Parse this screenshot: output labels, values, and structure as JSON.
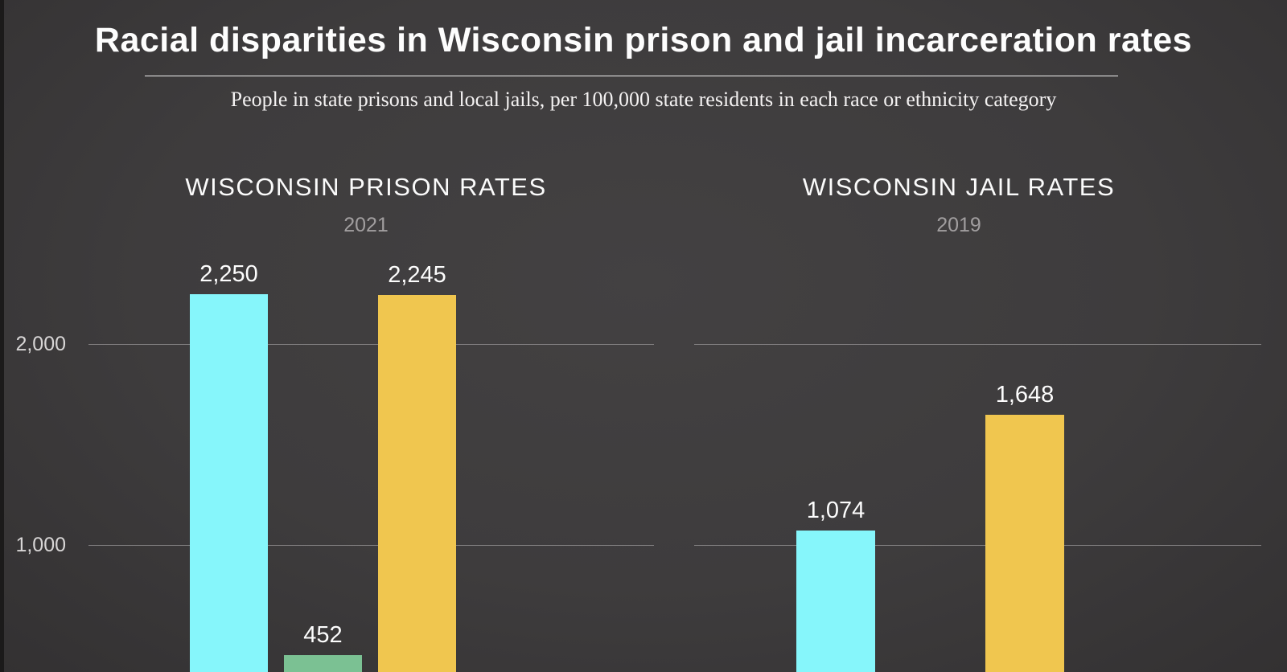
{
  "header": {
    "title": "Racial disparities in Wisconsin prison and jail incarceration rates",
    "subtitle": "People in state prisons and local jails, per 100,000 state residents in each race or ethnicity category"
  },
  "axis": {
    "ticks": [
      {
        "value": 2000,
        "label": "2,000"
      },
      {
        "value": 1000,
        "label": "1,000"
      }
    ]
  },
  "colors": {
    "background": "#3e3c3d",
    "cyan_bar": "#86f6fb",
    "green_bar": "#7bc193",
    "yellow_bar": "#f0c64f",
    "gridline": "#918f90",
    "muted_text": "#a19e9f"
  },
  "chart_data": [
    {
      "type": "bar",
      "title": "WISCONSIN PRISON RATES",
      "subtitle": "2021",
      "values": [
        2250,
        452,
        2245
      ],
      "value_labels": [
        "2,250",
        "452",
        "2,245"
      ],
      "bar_colors": [
        "#86f6fb",
        "#7bc193",
        "#f0c64f"
      ],
      "yticks": [
        1000,
        2000
      ],
      "ylim": [
        0,
        2500
      ],
      "grid": true,
      "legend": "none",
      "category_axis_visible": false
    },
    {
      "type": "bar",
      "title": "WISCONSIN JAIL RATES",
      "subtitle": "2019",
      "values": [
        1074,
        1648
      ],
      "value_labels": [
        "1,074",
        "1,648"
      ],
      "bar_colors": [
        "#86f6fb",
        "#f0c64f"
      ],
      "yticks": [
        1000,
        2000
      ],
      "ylim": [
        0,
        2500
      ],
      "grid": true,
      "legend": "none",
      "category_axis_visible": false
    }
  ]
}
